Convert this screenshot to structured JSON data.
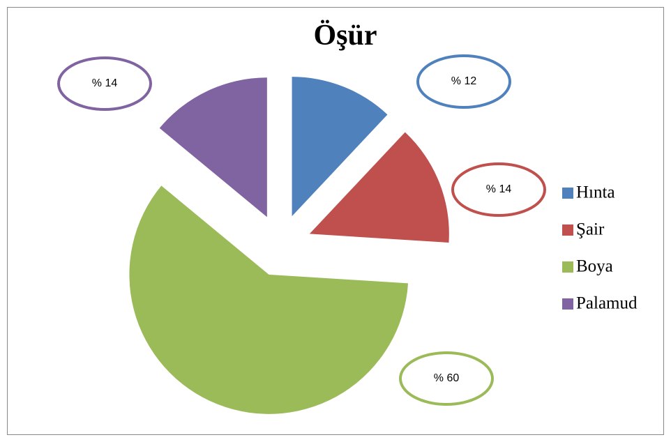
{
  "chart_data": {
    "type": "pie",
    "title": "Öşür",
    "categories": [
      "Hınta",
      "Şair",
      "Boya",
      "Palamud"
    ],
    "values": [
      12,
      14,
      60,
      14
    ],
    "value_labels": [
      "% 12",
      "% 14",
      "% 60",
      "% 14"
    ],
    "colors": [
      "#4f81bd",
      "#c0504d",
      "#9bbb59",
      "#8064a2"
    ],
    "legend": "right"
  }
}
